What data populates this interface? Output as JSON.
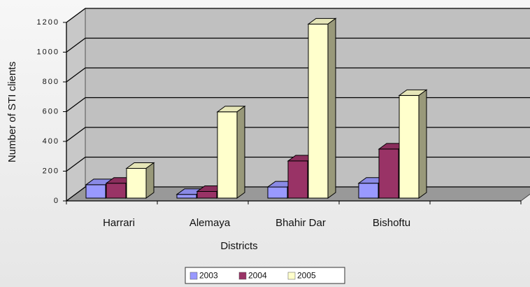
{
  "chart_data": {
    "type": "bar3d",
    "x_label": "Districts",
    "y_label": "Number of STI clients",
    "categories": [
      "Harrari",
      "Alemaya",
      "Bhahir Dar",
      "Bishoftu"
    ],
    "series": [
      {
        "name": "2003",
        "color": "#9999ff",
        "values": [
          90,
          25,
          75,
          100
        ]
      },
      {
        "name": "2004",
        "color": "#993366",
        "values": [
          100,
          45,
          250,
          330
        ]
      },
      {
        "name": "2005",
        "color": "#ffffcc",
        "values": [
          200,
          580,
          1170,
          690
        ]
      }
    ],
    "ylim": [
      0,
      1200
    ],
    "yticks": [
      0,
      200,
      400,
      600,
      800,
      1000,
      1200
    ],
    "grid": true,
    "legend": "bottom"
  }
}
